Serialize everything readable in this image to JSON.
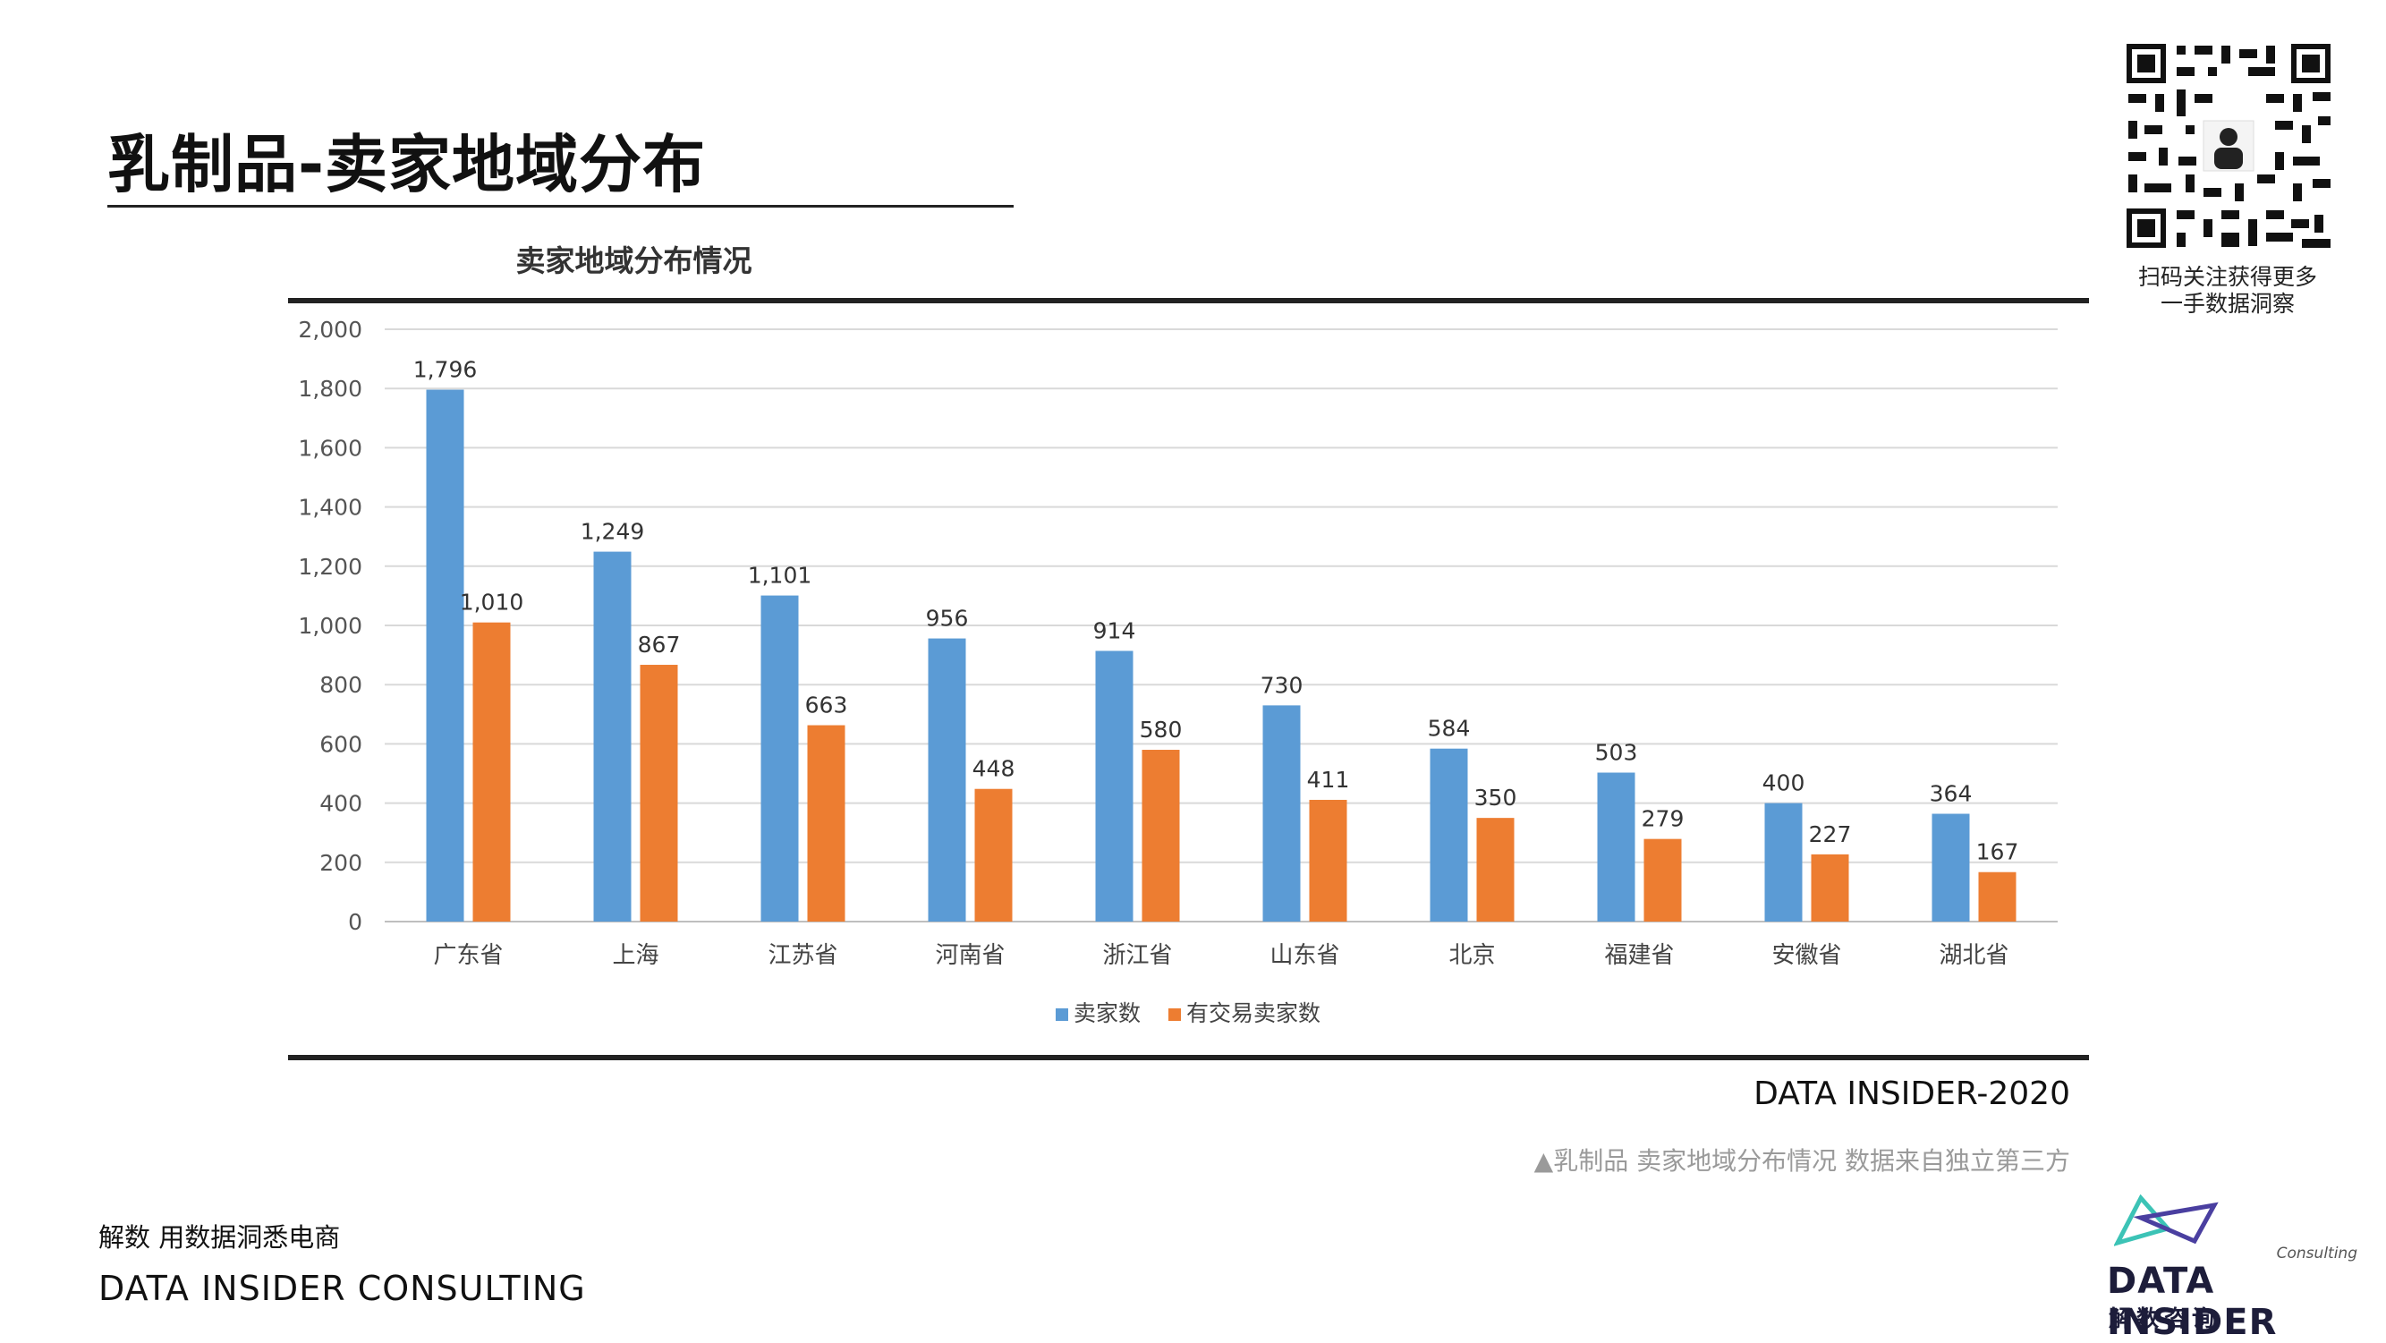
{
  "header": {
    "title": "乳制品-卖家地域分布"
  },
  "qr": {
    "caption_line1": "扫码关注获得更多",
    "caption_line2": "一手数据洞察"
  },
  "chart_data": {
    "type": "bar",
    "title": "卖家地域分布情况",
    "categories": [
      "广东省",
      "上海",
      "江苏省",
      "河南省",
      "浙江省",
      "山东省",
      "北京",
      "福建省",
      "安徽省",
      "湖北省"
    ],
    "series": [
      {
        "name": "卖家数",
        "color": "#5B9BD5",
        "values": [
          1796,
          1249,
          1101,
          956,
          914,
          730,
          584,
          503,
          400,
          364
        ]
      },
      {
        "name": "有交易卖家数",
        "color": "#ED7D31",
        "values": [
          1010,
          867,
          663,
          448,
          580,
          411,
          350,
          279,
          227,
          167
        ]
      }
    ],
    "ylim": [
      0,
      2000
    ],
    "yticks": [
      0,
      200,
      400,
      600,
      800,
      1000,
      1200,
      1400,
      1600,
      1800,
      2000
    ],
    "ytick_labels": [
      "0",
      "200",
      "400",
      "600",
      "800",
      "1,000",
      "1,200",
      "1,400",
      "1,600",
      "1,800",
      "2,000"
    ],
    "data_labels": [
      [
        "1,796",
        "1,249",
        "1,101",
        "956",
        "914",
        "730",
        "584",
        "503",
        "400",
        "364"
      ],
      [
        "1,010",
        "867",
        "663",
        "448",
        "580",
        "411",
        "350",
        "279",
        "227",
        "167"
      ]
    ],
    "grid": true,
    "legend": "bottom",
    "xlabel": "",
    "ylabel": ""
  },
  "source": {
    "label": "DATA INSIDER-2020",
    "note": "▲乳制品 卖家地域分布情况 数据来自独立第三方"
  },
  "footer": {
    "tagline": "解数 用数据洞悉电商",
    "company": "DATA INSIDER CONSULTING"
  },
  "logo": {
    "consulting": "Consulting",
    "name": "DATA INSIDER",
    "cn": "解数咨询"
  }
}
